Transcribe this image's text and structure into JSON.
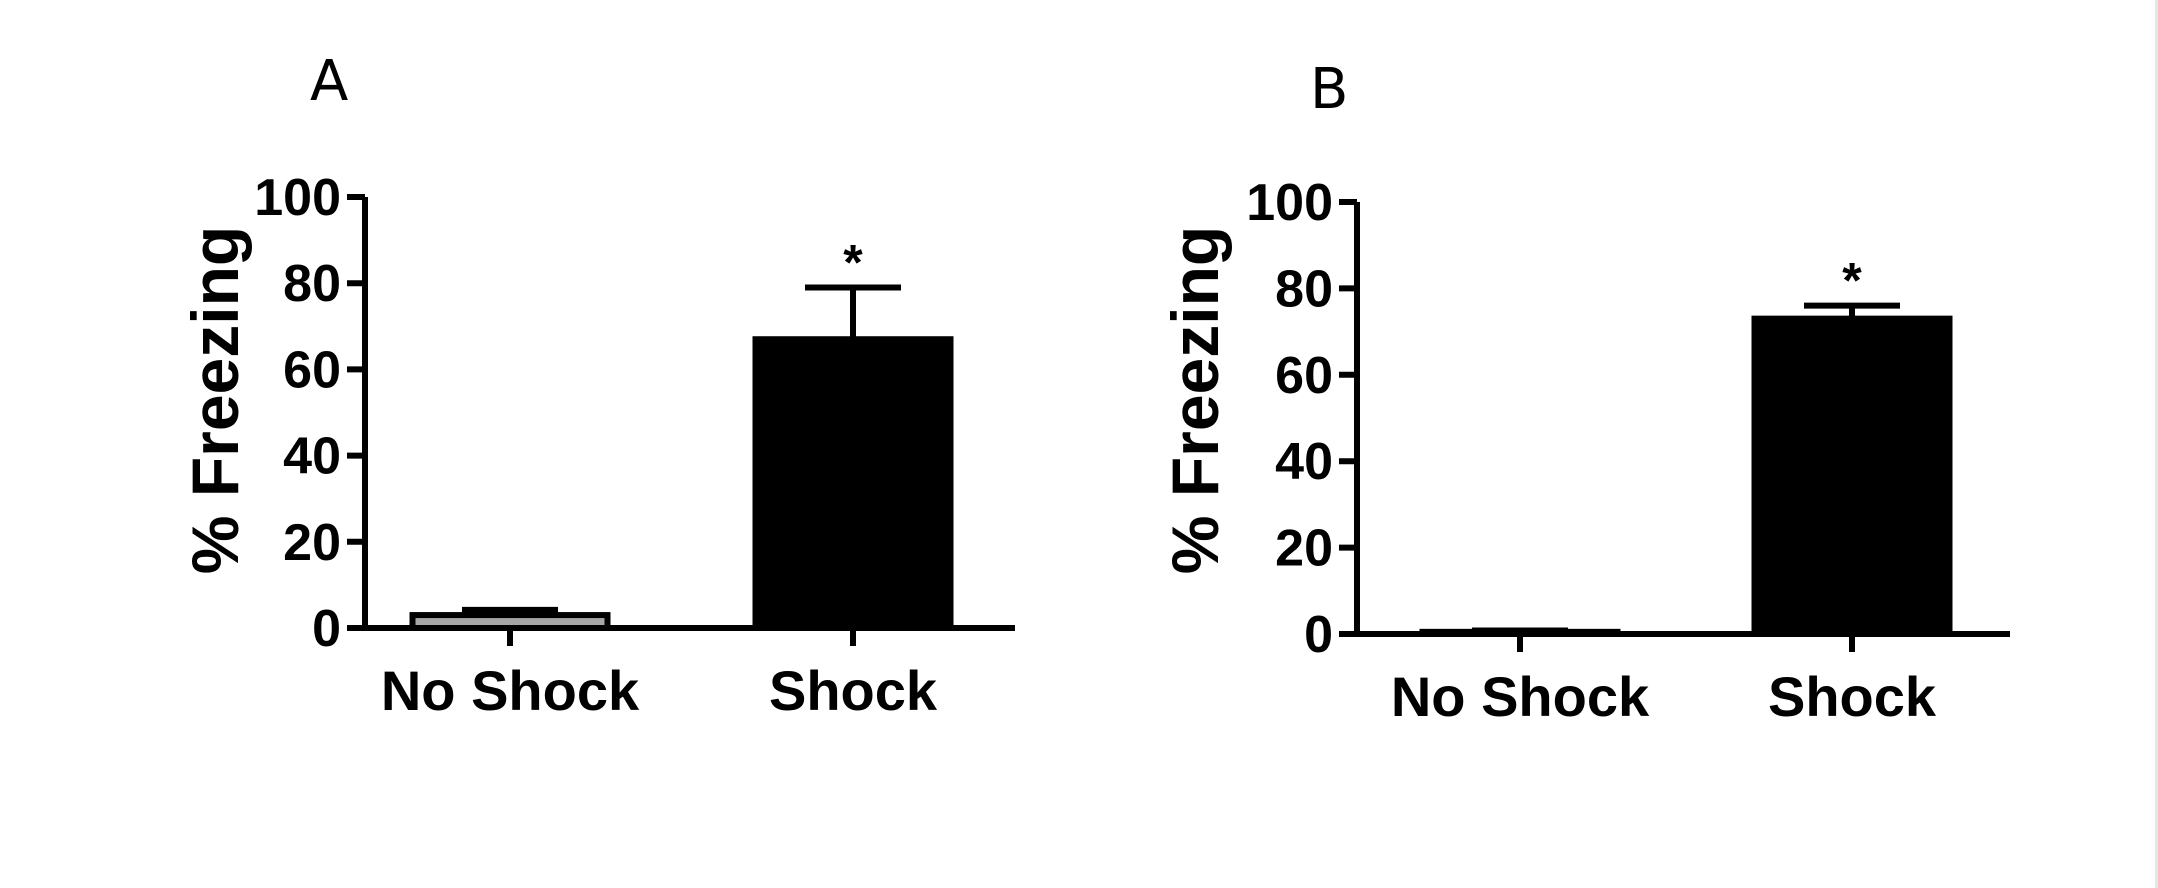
{
  "colors": {
    "no_shock_fill_A": "#a6a6a6",
    "no_shock_fill_B": "#a6a6a6",
    "shock_fill": "#000000",
    "axis": "#000000"
  },
  "chart_data": [
    {
      "type": "bar",
      "panel": "A",
      "ylabel": "% Freezing",
      "xlabel": "",
      "categories": [
        "No Shock",
        "Shock"
      ],
      "values": [
        3,
        67
      ],
      "errors": [
        1.2,
        12
      ],
      "significance": [
        "",
        "*"
      ],
      "ylim": [
        0,
        100
      ],
      "yticks": [
        0,
        20,
        40,
        60,
        80,
        100
      ],
      "grid": false
    },
    {
      "type": "bar",
      "panel": "B",
      "ylabel": "% Freezing",
      "xlabel": "",
      "categories": [
        "No Shock",
        "Shock"
      ],
      "values": [
        0.5,
        73
      ],
      "errors": [
        0.3,
        3
      ],
      "significance": [
        "",
        "*"
      ],
      "ylim": [
        0,
        100
      ],
      "yticks": [
        0,
        20,
        40,
        60,
        80,
        100
      ],
      "grid": false
    }
  ]
}
